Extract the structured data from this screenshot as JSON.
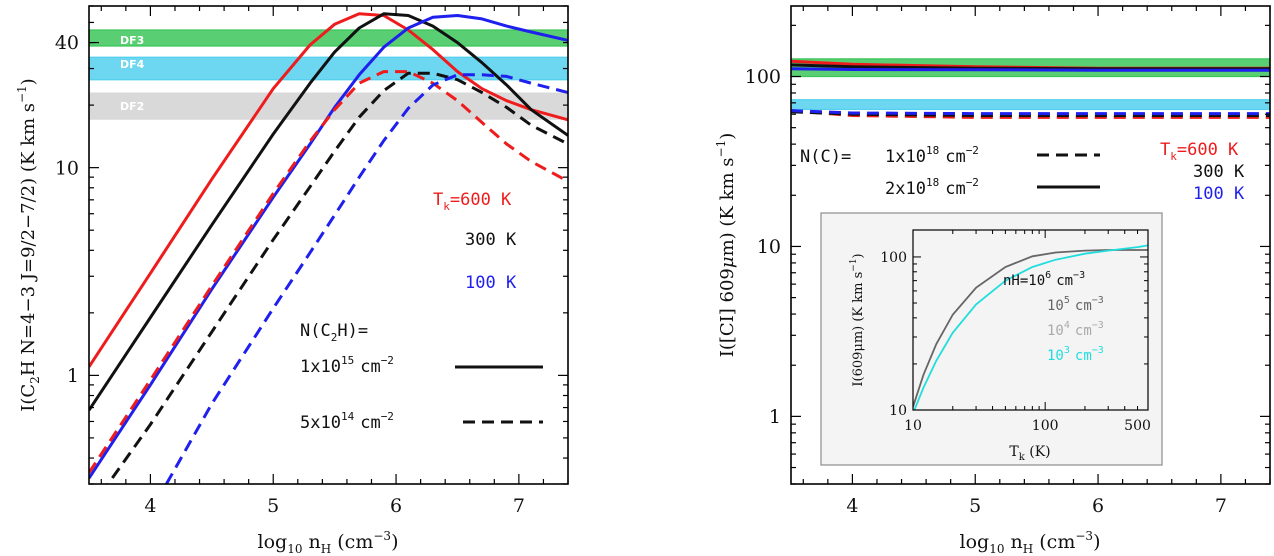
{
  "colors": {
    "red": "#ee1c1c",
    "black": "#111111",
    "blue": "#1f1fee",
    "green": "#3cc65a",
    "cyan": "#54cfee",
    "gray": "#d9d9d9",
    "dgray": "#666666",
    "lgray": "#aaaaaa",
    "inset_cyan": "#22dddd"
  },
  "chart_data": [
    {
      "type": "line",
      "xlabel": "log10 nH (cm−3)",
      "ylabel": "I(C2H N=4−3 J=9/2−7/2) (K km s−1)",
      "yscale": "log",
      "xlim": [
        3.5,
        7.4
      ],
      "ylim": [
        0.3,
        60
      ],
      "x_ticks": [
        "4",
        "5",
        "6",
        "7"
      ],
      "y_ticks": [
        "1",
        "10",
        "40"
      ],
      "bands": [
        {
          "label": "DF3",
          "range": [
            38.5,
            46
          ],
          "color": "green"
        },
        {
          "label": "DF4",
          "range": [
            26.5,
            34
          ],
          "color": "cyan"
        },
        {
          "label": "DF2",
          "range": [
            17,
            23
          ],
          "color": "gray"
        }
      ],
      "temperature_labels": [
        "T",
        "k",
        "=600 K",
        "300 K",
        "100 K"
      ],
      "legend": {
        "title": "N(C",
        "title_sub": "2",
        "title_end": "H)=",
        "solid": "1x10",
        "solid_exp": "15",
        "dashed": "5x10",
        "dashed_exp": "14",
        "unit": "cm",
        "unit_exp": "−2"
      },
      "series": [
        {
          "color": "red",
          "dash": false,
          "x": [
            3.5,
            4.0,
            4.5,
            5.0,
            5.3,
            5.5,
            5.7,
            5.9,
            6.1,
            6.3,
            6.5,
            6.7,
            6.9,
            7.1,
            7.4
          ],
          "y": [
            1.1,
            3.1,
            8.8,
            24,
            39,
            49,
            55,
            54,
            46,
            37,
            29,
            24,
            21,
            19,
            17
          ]
        },
        {
          "color": "black",
          "dash": false,
          "x": [
            3.5,
            4.0,
            4.5,
            5.0,
            5.3,
            5.5,
            5.7,
            5.9,
            6.1,
            6.3,
            6.5,
            6.7,
            6.9,
            7.1,
            7.4
          ],
          "y": [
            0.68,
            1.9,
            5.3,
            14.5,
            25.5,
            36,
            47,
            55,
            54,
            48,
            40,
            32,
            25,
            19,
            14.3
          ]
        },
        {
          "color": "blue",
          "dash": false,
          "x": [
            3.5,
            4.0,
            4.5,
            5.0,
            5.3,
            5.5,
            5.7,
            5.9,
            6.1,
            6.3,
            6.5,
            6.7,
            6.9,
            7.1,
            7.4
          ],
          "y": [
            0.32,
            0.9,
            2.6,
            7.2,
            13,
            19.5,
            28,
            38,
            47,
            53,
            54,
            52,
            48,
            45,
            41
          ]
        },
        {
          "color": "red",
          "dash": true,
          "x": [
            3.5,
            4.0,
            4.5,
            5.0,
            5.3,
            5.5,
            5.7,
            5.9,
            6.1,
            6.3,
            6.5,
            6.7,
            6.9,
            7.1,
            7.4
          ],
          "y": [
            0.34,
            0.95,
            2.7,
            7.5,
            13.4,
            19,
            25.5,
            29,
            29,
            25.5,
            21,
            16.5,
            13,
            10.7,
            8.6
          ]
        },
        {
          "color": "black",
          "dash": true,
          "x": [
            3.6,
            4.0,
            4.5,
            5.0,
            5.3,
            5.5,
            5.7,
            5.9,
            6.1,
            6.3,
            6.5,
            6.7,
            6.9,
            7.1,
            7.4
          ],
          "y": [
            0.27,
            0.58,
            1.62,
            4.5,
            8.1,
            12,
            17.5,
            23.5,
            28.5,
            28.5,
            26.5,
            23,
            19.5,
            16,
            13
          ]
        },
        {
          "color": "blue",
          "dash": true,
          "x": [
            4.13,
            4.5,
            5.0,
            5.3,
            5.5,
            5.7,
            5.9,
            6.1,
            6.3,
            6.5,
            6.7,
            6.9,
            7.1,
            7.4
          ],
          "y": [
            0.3,
            0.73,
            2.1,
            3.9,
            5.9,
            9,
            13.5,
            19.3,
            25,
            28,
            28,
            27.5,
            25.5,
            23
          ]
        }
      ]
    },
    {
      "type": "line",
      "xlabel": "log10 nH (cm−3)",
      "ylabel": "I([CI] 609μm) (K km s−1)",
      "yscale": "log",
      "xlim": [
        3.5,
        7.4
      ],
      "ylim": [
        0.4,
        260
      ],
      "x_ticks": [
        "4",
        "5",
        "6",
        "7"
      ],
      "y_ticks": [
        "1",
        "10",
        "100"
      ],
      "bands": [
        {
          "range": [
            100,
            127
          ],
          "color": "green"
        },
        {
          "range": [
            64,
            73
          ],
          "color": "cyan"
        }
      ],
      "temperature_labels": [
        "T",
        "k",
        "=600 K",
        "300 K",
        "100 K"
      ],
      "legend": {
        "title": "N(C)=",
        "dashed": "1x10",
        "dashed_exp": "18",
        "solid": "2x10",
        "solid_exp": "18",
        "unit": "cm",
        "unit_exp": "−2"
      },
      "series": [
        {
          "color": "red",
          "dash": false,
          "x": [
            3.5,
            4.0,
            5.0,
            6.0,
            7.0,
            7.4
          ],
          "y": [
            123,
            118,
            114,
            112,
            112,
            112
          ]
        },
        {
          "color": "black",
          "dash": false,
          "x": [
            3.5,
            4.0,
            5.0,
            6.0,
            7.0,
            7.4
          ],
          "y": [
            117,
            114,
            112,
            111,
            111,
            111
          ]
        },
        {
          "color": "blue",
          "dash": false,
          "x": [
            3.5,
            4.0,
            5.0,
            6.0,
            7.0,
            7.4
          ],
          "y": [
            111,
            110,
            109.5,
            109,
            109,
            109
          ]
        },
        {
          "color": "red",
          "dash": true,
          "x": [
            3.5,
            4.0,
            5.0,
            6.0,
            7.0,
            7.4
          ],
          "y": [
            63,
            59,
            57.5,
            57.5,
            57.5,
            57.5
          ]
        },
        {
          "color": "black",
          "dash": true,
          "x": [
            3.5,
            4.0,
            5.0,
            6.0,
            7.0,
            7.4
          ],
          "y": [
            62,
            60,
            59,
            59,
            59,
            59
          ]
        },
        {
          "color": "blue",
          "dash": true,
          "x": [
            3.5,
            4.0,
            5.0,
            6.0,
            7.0,
            7.4
          ],
          "y": [
            63,
            61,
            60.5,
            60.5,
            60.5,
            60.5
          ]
        }
      ],
      "inset": {
        "type": "line",
        "xlabel": "Tk (K)",
        "ylabel": "I(609μm) (K km s−1)",
        "xscale": "log",
        "yscale": "log",
        "xlim": [
          10,
          600
        ],
        "ylim": [
          10,
          150
        ],
        "x_ticks": [
          "10",
          "100",
          "500"
        ],
        "y_ticks": [
          "10",
          "100"
        ],
        "labels": [
          {
            "text": "nH=10",
            "exp": "6",
            "unit": "cm",
            "unit_exp": "−3",
            "color": "black"
          },
          {
            "text": "10",
            "exp": "5",
            "unit": "cm",
            "unit_exp": "−3",
            "color": "dgray"
          },
          {
            "text": "10",
            "exp": "4",
            "unit": "cm",
            "unit_exp": "−3",
            "color": "lgray"
          },
          {
            "text": "10",
            "exp": "3",
            "unit": "cm",
            "unit_exp": "−3",
            "color": "inset_cyan"
          }
        ],
        "series": [
          {
            "color": "dgray",
            "x": [
              10,
              12,
              15,
              20,
              30,
              50,
              80,
              120,
              200,
              300,
              500,
              600
            ],
            "y": [
              10.5,
              17,
              27,
              42,
              63,
              86,
              101,
              107,
              110,
              111,
              111,
              111
            ]
          },
          {
            "color": "inset_cyan",
            "x": [
              10,
              12,
              15,
              20,
              30,
              50,
              80,
              120,
              200,
              300,
              500,
              600
            ],
            "y": [
              9.5,
              14,
              21,
              32,
              49,
              70,
              86,
              96,
              105,
              110,
              116,
              119
            ]
          }
        ]
      }
    }
  ]
}
